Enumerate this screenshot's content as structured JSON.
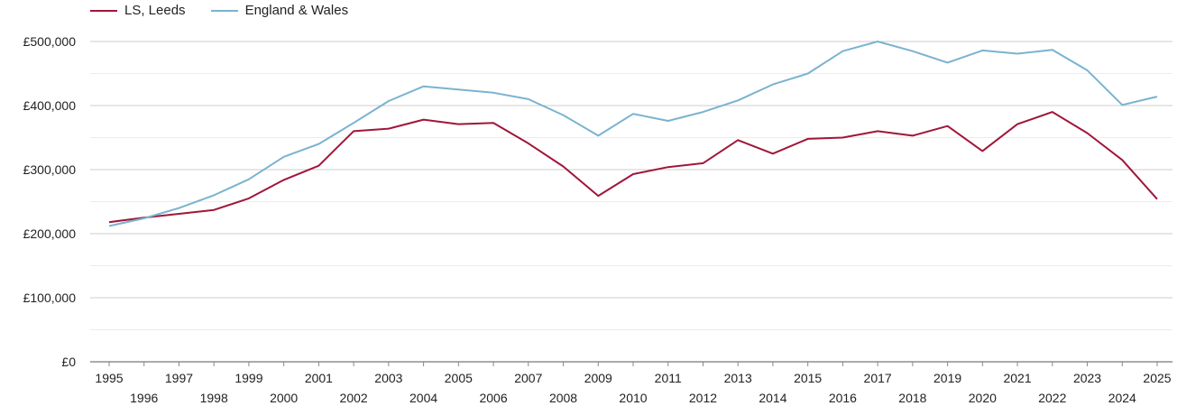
{
  "chart_data": {
    "type": "line",
    "x": [
      "1995",
      "1996",
      "1997",
      "1998",
      "1999",
      "2000",
      "2001",
      "2002",
      "2003",
      "2004",
      "2005",
      "2006",
      "2007",
      "2008",
      "2009",
      "2010",
      "2011",
      "2012",
      "2013",
      "2014",
      "2015",
      "2016",
      "2017",
      "2018",
      "2019",
      "2020",
      "2021",
      "2022",
      "2023",
      "2024",
      "2025"
    ],
    "series": [
      {
        "name": "LS, Leeds",
        "color": "#a0163a",
        "values": [
          218000,
          225000,
          231000,
          237000,
          255000,
          284000,
          306000,
          360000,
          364000,
          378000,
          371000,
          373000,
          341000,
          305000,
          259000,
          293000,
          304000,
          310000,
          346000,
          325000,
          348000,
          350000,
          360000,
          353000,
          368000,
          329000,
          371000,
          390000,
          357000,
          315000,
          254000
        ]
      },
      {
        "name": "England & Wales",
        "color": "#7ab3d0",
        "values": [
          212000,
          224000,
          240000,
          260000,
          285000,
          320000,
          340000,
          373000,
          407000,
          430000,
          425000,
          420000,
          410000,
          385000,
          353000,
          387000,
          376000,
          390000,
          408000,
          433000,
          450000,
          485000,
          500000,
          485000,
          467000,
          486000,
          481000,
          487000,
          455000,
          401000,
          414000
        ]
      }
    ],
    "y_ticks": [
      "£0",
      "£100,000",
      "£200,000",
      "£300,000",
      "£400,000",
      "£500,000"
    ],
    "y_tick_values": [
      0,
      100000,
      200000,
      300000,
      400000,
      500000
    ],
    "ylim": [
      0,
      500000
    ],
    "grid": true,
    "legend_position": "top-left"
  }
}
